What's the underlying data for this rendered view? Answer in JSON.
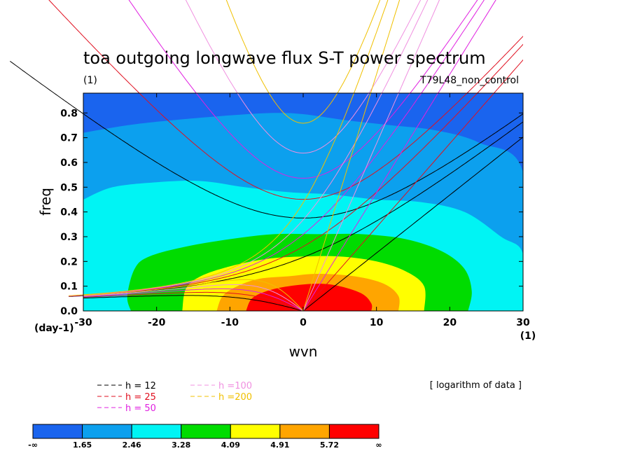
{
  "chart_data": {
    "type": "contour",
    "title": "toa outgoing longwave flux S-T power spectrum",
    "title_unit": "(1)",
    "case_name": "T79L48_non_control",
    "xlabel": "wvn",
    "ylabel": "freq",
    "x_unit": "(1)",
    "y_unit": "(day-1)",
    "xlim": [
      -30,
      30
    ],
    "ylim": [
      0,
      0.88
    ],
    "x_ticks": [
      -30,
      -20,
      -10,
      0,
      10,
      20,
      30
    ],
    "x_tick_labels": [
      "-30",
      "-20",
      "-10",
      "0",
      "10",
      "20",
      "30"
    ],
    "y_ticks": [
      0,
      0.1,
      0.2,
      0.3,
      0.4,
      0.5,
      0.6,
      0.7,
      0.8
    ],
    "y_tick_labels": [
      "0.0",
      "0.1",
      "0.2",
      "0.3",
      "0.4",
      "0.5",
      "0.6",
      "0.7",
      "0.8"
    ],
    "field_note": "[ logarithm of data ]",
    "contour_levels": [
      "-∞",
      "1.65",
      "2.46",
      "3.28",
      "4.09",
      "4.91",
      "5.72",
      "∞"
    ],
    "contour_colors": [
      "#1a64ee",
      "#0ca0ee",
      "#00f4f4",
      "#00dc00",
      "#ffff00",
      "#ffa500",
      "#ff0000"
    ],
    "contour_regions": [
      {
        "level": 1,
        "color": "#0ca0ee",
        "boundary": [
          [
            -30,
            0.72
          ],
          [
            -24,
            0.75
          ],
          [
            -18,
            0.77
          ],
          [
            -10,
            0.79
          ],
          [
            -4,
            0.8
          ],
          [
            0,
            0.795
          ],
          [
            6,
            0.77
          ],
          [
            12,
            0.75
          ],
          [
            18,
            0.73
          ],
          [
            24,
            0.68
          ],
          [
            30,
            0.56
          ],
          [
            30,
            0
          ],
          [
            -30,
            0
          ]
        ]
      },
      {
        "level": 2,
        "color": "#00f4f4",
        "boundary": [
          [
            -30,
            0.45
          ],
          [
            -26,
            0.5
          ],
          [
            -20,
            0.52
          ],
          [
            -14,
            0.525
          ],
          [
            -8,
            0.5
          ],
          [
            -2,
            0.48
          ],
          [
            4,
            0.47
          ],
          [
            10,
            0.45
          ],
          [
            16,
            0.44
          ],
          [
            22,
            0.4
          ],
          [
            27,
            0.3
          ],
          [
            30,
            0.23
          ],
          [
            30,
            0
          ],
          [
            -30,
            0
          ]
        ]
      },
      {
        "level": 3,
        "color": "#00dc00",
        "boundary": [
          [
            -23.5,
            0
          ],
          [
            -24,
            0.06
          ],
          [
            -23,
            0.17
          ],
          [
            -21,
            0.22
          ],
          [
            -16,
            0.26
          ],
          [
            -10,
            0.29
          ],
          [
            -4,
            0.31
          ],
          [
            2,
            0.31
          ],
          [
            8,
            0.31
          ],
          [
            14,
            0.29
          ],
          [
            19,
            0.24
          ],
          [
            22,
            0.17
          ],
          [
            23,
            0.08
          ],
          [
            22.5,
            0
          ]
        ]
      },
      {
        "level": 4,
        "color": "#ffff00",
        "boundary": [
          [
            -16.5,
            0
          ],
          [
            -16,
            0.09
          ],
          [
            -14,
            0.14
          ],
          [
            -10,
            0.18
          ],
          [
            -5,
            0.21
          ],
          [
            0,
            0.22
          ],
          [
            5,
            0.22
          ],
          [
            10,
            0.2
          ],
          [
            14,
            0.16
          ],
          [
            16.5,
            0.1
          ],
          [
            16.5,
            0
          ]
        ]
      },
      {
        "level": 5,
        "color": "#ffa500",
        "boundary": [
          [
            -11.8,
            0
          ],
          [
            -11,
            0.06
          ],
          [
            -9,
            0.1
          ],
          [
            -6,
            0.13
          ],
          [
            -2,
            0.14
          ],
          [
            2,
            0.15
          ],
          [
            7,
            0.14
          ],
          [
            11,
            0.11
          ],
          [
            13,
            0.06
          ],
          [
            13,
            0
          ]
        ]
      },
      {
        "level": 6,
        "color": "#ff0000",
        "boundary": [
          [
            -7.8,
            0
          ],
          [
            -7,
            0.05
          ],
          [
            -5,
            0.08
          ],
          [
            -2,
            0.1
          ],
          [
            2,
            0.11
          ],
          [
            5,
            0.1
          ],
          [
            8,
            0.07
          ],
          [
            9.3,
            0.03
          ],
          [
            9.3,
            0
          ]
        ]
      }
    ],
    "dispersion_curves": [
      {
        "label": "h = 12",
        "h": 12,
        "color": "#000000"
      },
      {
        "label": "h = 25",
        "h": 25,
        "color": "#e01020"
      },
      {
        "label": "h = 50",
        "h": 50,
        "color": "#e020e0"
      },
      {
        "label": "h =100",
        "h": 100,
        "color": "#f090e0"
      },
      {
        "label": "h =200",
        "h": 200,
        "color": "#f0c000"
      }
    ]
  }
}
